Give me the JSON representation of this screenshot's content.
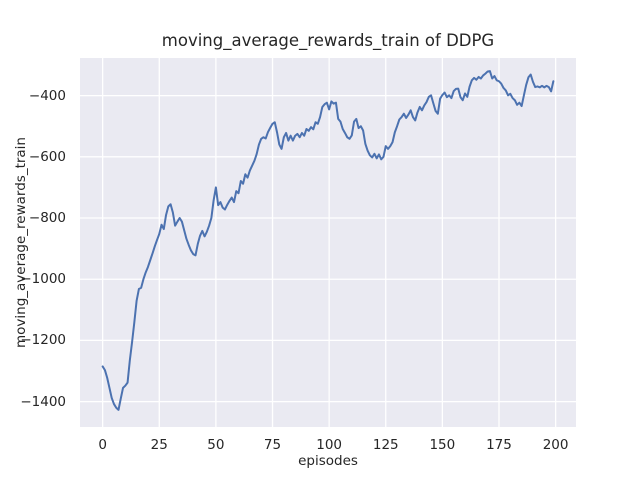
{
  "chart_data": {
    "type": "line",
    "title": "moving_average_rewards_train of DDPG",
    "xlabel": "episodes",
    "ylabel": "moving_average_rewards_train",
    "xlim": [
      -10,
      209
    ],
    "ylim": [
      -1483,
      -277
    ],
    "xticks": [
      0,
      25,
      50,
      75,
      100,
      125,
      150,
      175,
      200
    ],
    "yticks": [
      -400,
      -600,
      -800,
      -1000,
      -1200,
      -1400
    ],
    "grid": true,
    "legend": false,
    "style": {
      "fig_bg": "#ffffff",
      "plot_bg": "#eaeaf2",
      "grid_color": "#ffffff",
      "line_color": "#4c72b0",
      "text_color": "#262626"
    },
    "series": [
      {
        "name": "moving_average_rewards_train",
        "color": "#4c72b0",
        "x0": 0,
        "dx": 1,
        "values": [
          -1285,
          -1297,
          -1322,
          -1355,
          -1388,
          -1408,
          -1420,
          -1427,
          -1390,
          -1355,
          -1348,
          -1338,
          -1265,
          -1205,
          -1140,
          -1070,
          -1032,
          -1028,
          -1000,
          -978,
          -960,
          -938,
          -916,
          -893,
          -872,
          -852,
          -822,
          -836,
          -790,
          -762,
          -755,
          -782,
          -825,
          -812,
          -800,
          -812,
          -840,
          -868,
          -888,
          -906,
          -918,
          -922,
          -885,
          -858,
          -842,
          -860,
          -845,
          -825,
          -800,
          -742,
          -700,
          -758,
          -748,
          -766,
          -772,
          -757,
          -744,
          -733,
          -748,
          -712,
          -719,
          -679,
          -688,
          -657,
          -668,
          -645,
          -629,
          -613,
          -591,
          -560,
          -541,
          -536,
          -540,
          -519,
          -505,
          -492,
          -487,
          -520,
          -560,
          -574,
          -536,
          -522,
          -547,
          -531,
          -547,
          -531,
          -525,
          -536,
          -522,
          -531,
          -509,
          -515,
          -503,
          -510,
          -487,
          -492,
          -470,
          -437,
          -428,
          -423,
          -445,
          -419,
          -426,
          -423,
          -476,
          -485,
          -509,
          -522,
          -536,
          -541,
          -530,
          -485,
          -476,
          -506,
          -500,
          -514,
          -558,
          -580,
          -595,
          -602,
          -590,
          -605,
          -592,
          -608,
          -600,
          -565,
          -574,
          -565,
          -552,
          -520,
          -500,
          -478,
          -470,
          -459,
          -473,
          -462,
          -448,
          -470,
          -481,
          -455,
          -437,
          -448,
          -432,
          -421,
          -404,
          -399,
          -425,
          -450,
          -459,
          -410,
          -398,
          -390,
          -405,
          -399,
          -408,
          -385,
          -378,
          -377,
          -405,
          -415,
          -393,
          -404,
          -371,
          -350,
          -342,
          -348,
          -339,
          -344,
          -334,
          -328,
          -321,
          -320,
          -344,
          -336,
          -350,
          -353,
          -361,
          -375,
          -383,
          -399,
          -394,
          -408,
          -415,
          -430,
          -423,
          -434,
          -399,
          -365,
          -340,
          -331,
          -355,
          -372,
          -370,
          -373,
          -368,
          -373,
          -368,
          -372,
          -386,
          -353
        ]
      }
    ]
  }
}
